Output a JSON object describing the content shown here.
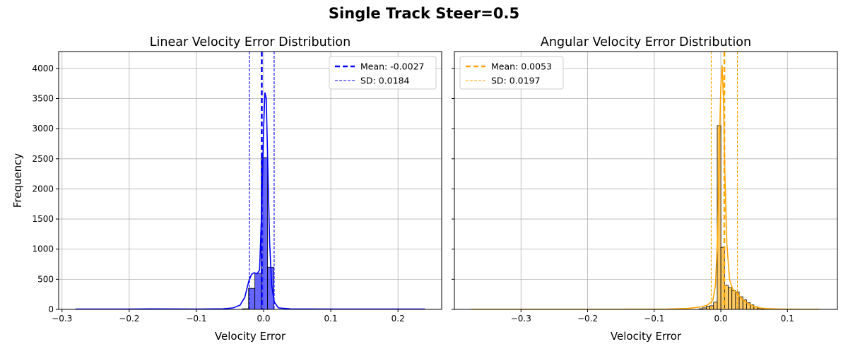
{
  "figure": {
    "title": "Single Track Steer=0.5"
  },
  "chart_data": [
    {
      "type": "histogram",
      "title": "Linear Velocity Error Distribution",
      "xlabel": "Velocity Error",
      "ylabel": "Frequency",
      "xlim": [
        -0.305,
        0.265
      ],
      "ylim": [
        0,
        4280
      ],
      "xticks": [
        -0.3,
        -0.2,
        -0.1,
        0.0,
        0.1,
        0.2
      ],
      "xtick_labels": [
        "−0.3",
        "−0.2",
        "−0.1",
        "0.0",
        "0.1",
        "0.2"
      ],
      "yticks": [
        0,
        500,
        1000,
        1500,
        2000,
        2500,
        3000,
        3500,
        4000
      ],
      "ytick_labels": [
        "0",
        "500",
        "1000",
        "1500",
        "2000",
        "2500",
        "3000",
        "3500",
        "4000"
      ],
      "grid": true,
      "color": "#0000ff",
      "bin_width": 0.0094,
      "bins": [
        {
          "x": -0.0318,
          "y": 10
        },
        {
          "x": -0.0224,
          "y": 350
        },
        {
          "x": -0.013,
          "y": 600
        },
        {
          "x": -0.0036,
          "y": 2520
        },
        {
          "x": 0.0058,
          "y": 700
        }
      ],
      "kde": [
        [
          -0.28,
          5
        ],
        [
          -0.2,
          5
        ],
        [
          -0.17,
          8
        ],
        [
          -0.1,
          5
        ],
        [
          -0.06,
          10
        ],
        [
          -0.045,
          25
        ],
        [
          -0.035,
          70
        ],
        [
          -0.028,
          200
        ],
        [
          -0.022,
          470
        ],
        [
          -0.018,
          580
        ],
        [
          -0.014,
          610
        ],
        [
          -0.01,
          590
        ],
        [
          -0.006,
          650
        ],
        [
          -0.003,
          1600
        ],
        [
          0.0,
          3000
        ],
        [
          0.002,
          3600
        ],
        [
          0.004,
          3500
        ],
        [
          0.006,
          2500
        ],
        [
          0.009,
          1100
        ],
        [
          0.012,
          400
        ],
        [
          0.016,
          120
        ],
        [
          0.022,
          25
        ],
        [
          0.04,
          8
        ],
        [
          0.1,
          5
        ],
        [
          0.2,
          5
        ],
        [
          0.24,
          5
        ]
      ],
      "mean": -0.0027,
      "sd": 0.0184,
      "legend": {
        "position": "upper right",
        "mean_label": "Mean: -0.0027",
        "sd_label": "SD: 0.0184"
      }
    },
    {
      "type": "histogram",
      "title": "Angular Velocity Error Distribution",
      "xlabel": "Velocity Error",
      "ylabel": "",
      "xlim": [
        -0.4,
        0.175
      ],
      "ylim": [
        0,
        4280
      ],
      "xticks": [
        -0.3,
        -0.2,
        -0.1,
        0.0,
        0.1
      ],
      "xtick_labels": [
        "−0.3",
        "−0.2",
        "−0.1",
        "0.0",
        "0.1"
      ],
      "yticks": [
        0,
        500,
        1000,
        1500,
        2000,
        2500,
        3000,
        3500,
        4000
      ],
      "grid": true,
      "color": "#ffa500",
      "bin_width": 0.0055,
      "bins": [
        {
          "x": -0.0329,
          "y": 10
        },
        {
          "x": -0.0274,
          "y": 25
        },
        {
          "x": -0.0219,
          "y": 50
        },
        {
          "x": -0.0164,
          "y": 60
        },
        {
          "x": -0.0109,
          "y": 120
        },
        {
          "x": -0.0054,
          "y": 3050
        },
        {
          "x": 0.0001,
          "y": 1030
        },
        {
          "x": 0.0056,
          "y": 400
        },
        {
          "x": 0.0111,
          "y": 360
        },
        {
          "x": 0.0166,
          "y": 310
        },
        {
          "x": 0.0221,
          "y": 290
        },
        {
          "x": 0.0276,
          "y": 210
        },
        {
          "x": 0.0331,
          "y": 160
        },
        {
          "x": 0.0386,
          "y": 110
        },
        {
          "x": 0.0441,
          "y": 75
        },
        {
          "x": 0.0496,
          "y": 45
        },
        {
          "x": 0.0551,
          "y": 20
        },
        {
          "x": 0.0606,
          "y": 10
        }
      ],
      "kde": [
        [
          -0.375,
          3
        ],
        [
          -0.25,
          3
        ],
        [
          -0.15,
          3
        ],
        [
          -0.08,
          6
        ],
        [
          -0.05,
          15
        ],
        [
          -0.03,
          40
        ],
        [
          -0.02,
          70
        ],
        [
          -0.012,
          150
        ],
        [
          -0.008,
          400
        ],
        [
          -0.005,
          1200
        ],
        [
          -0.002,
          2800
        ],
        [
          0.0,
          3700
        ],
        [
          0.002,
          4050
        ],
        [
          0.004,
          3500
        ],
        [
          0.006,
          2300
        ],
        [
          0.009,
          1100
        ],
        [
          0.013,
          500
        ],
        [
          0.018,
          330
        ],
        [
          0.025,
          260
        ],
        [
          0.032,
          170
        ],
        [
          0.04,
          100
        ],
        [
          0.05,
          50
        ],
        [
          0.06,
          22
        ],
        [
          0.07,
          12
        ],
        [
          0.09,
          6
        ],
        [
          0.12,
          3
        ],
        [
          0.148,
          2
        ]
      ],
      "mean": 0.0053,
      "sd": 0.0197,
      "legend": {
        "position": "upper left",
        "mean_label": "Mean: 0.0053",
        "sd_label": "SD: 0.0197"
      }
    }
  ]
}
